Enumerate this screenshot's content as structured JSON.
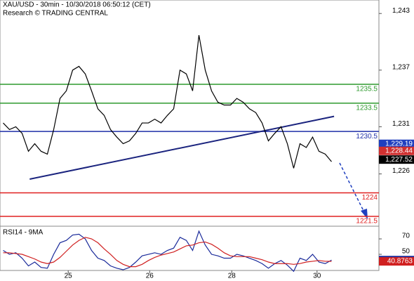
{
  "chart_data": [
    {
      "type": "line",
      "title": "XAU/USD - 30min - 10/30/2018 06:50:12 (CET)",
      "subtitle": "Research © TRADING CENTRAL",
      "x": [
        0,
        1,
        2,
        3,
        4,
        5,
        6,
        7,
        8,
        9,
        10,
        11,
        12,
        13,
        14,
        15,
        16,
        17,
        18,
        19,
        20,
        21,
        22,
        23,
        24,
        25,
        26,
        27,
        28,
        29,
        30,
        31,
        32,
        33,
        34,
        35,
        36,
        37,
        38,
        39,
        40,
        41,
        42,
        43,
        44,
        45,
        46,
        47,
        48,
        49,
        50,
        51,
        52
      ],
      "series": [
        {
          "color": "#000000",
          "values": [
            1231.4,
            1230.7,
            1231.0,
            1230.3,
            1228.4,
            1229.2,
            1228.4,
            1228.1,
            1230.7,
            1234.0,
            1234.8,
            1237.0,
            1237.4,
            1236.6,
            1234.8,
            1232.9,
            1232.2,
            1230.7,
            1229.9,
            1229.2,
            1229.5,
            1230.3,
            1231.4,
            1231.4,
            1231.8,
            1231.4,
            1232.2,
            1232.9,
            1237.0,
            1236.6,
            1234.8,
            1240.7,
            1237.0,
            1234.8,
            1233.6,
            1233.3,
            1233.3,
            1234.0,
            1233.6,
            1232.9,
            1232.5,
            1231.4,
            1229.5,
            1230.3,
            1231.0,
            1229.2,
            1226.6,
            1229.2,
            1228.8,
            1229.9,
            1228.4,
            1228.1,
            1227.3
          ]
        }
      ],
      "xlim": [
        -0.5,
        59.5
      ],
      "ylim": [
        1220.46,
        1244.43
      ],
      "yticks": [
        {
          "value": 1243,
          "label": "1,243"
        },
        {
          "value": 1237,
          "label": "1,237"
        },
        {
          "value": 1231,
          "label": "1,231"
        },
        {
          "value": 1226,
          "label": "1,226"
        }
      ],
      "levels": [
        {
          "value": 1235.5,
          "color": "#2e9a2e"
        },
        {
          "value": 1233.5,
          "color": "#2e9a2e"
        },
        {
          "value": 1230.5,
          "color": "#1f2fa8"
        },
        {
          "value": 1224,
          "color": "#e02020"
        },
        {
          "value": 1221.5,
          "color": "#e02020"
        }
      ],
      "trendline": {
        "x": [
          4.2,
          52.4
        ],
        "values": [
          1225.45,
          1232.1
        ],
        "color": "#1a237e"
      },
      "price_tags": [
        {
          "value": 1229.19,
          "label": "1,229.19",
          "color": "#1f3fbf"
        },
        {
          "value": 1228.44,
          "label": "1,228.44",
          "color": "#d03030"
        },
        {
          "value": 1227.52,
          "label": "1,227.52",
          "color": "#000000"
        }
      ]
    },
    {
      "type": "line",
      "title": "RSI14 - 9MA",
      "x": [
        0,
        1,
        2,
        3,
        4,
        5,
        6,
        7,
        8,
        9,
        10,
        11,
        12,
        13,
        14,
        15,
        16,
        17,
        18,
        19,
        20,
        21,
        22,
        23,
        24,
        25,
        26,
        27,
        28,
        29,
        30,
        31,
        32,
        33,
        34,
        35,
        36,
        37,
        38,
        39,
        40,
        41,
        42,
        43,
        44,
        45,
        46,
        47,
        48,
        49,
        50,
        51,
        52
      ],
      "series": [
        {
          "color": "#1a2a9a",
          "values": [
            55,
            50,
            52,
            45,
            35,
            40,
            33,
            32,
            50,
            65,
            68,
            75,
            76,
            70,
            55,
            45,
            42,
            35,
            32,
            30,
            33,
            40,
            48,
            50,
            52,
            50,
            55,
            58,
            72,
            68,
            55,
            80,
            62,
            50,
            48,
            45,
            45,
            50,
            48,
            45,
            42,
            38,
            32,
            38,
            42,
            36,
            28,
            45,
            42,
            50,
            40,
            38,
            42.5
          ]
        },
        {
          "color": "#d02020",
          "values": [
            52,
            52,
            51,
            50,
            47,
            44,
            40,
            38,
            40,
            46,
            54,
            62,
            68,
            72,
            70,
            65,
            57,
            50,
            42,
            37,
            34,
            34,
            37,
            42,
            46,
            49,
            51,
            53,
            57,
            61,
            62,
            65,
            66,
            63,
            58,
            52,
            48,
            47,
            47,
            47,
            45,
            43,
            40,
            38,
            38,
            38,
            37,
            38,
            40,
            41,
            42,
            41,
            40.9
          ]
        }
      ],
      "xlim": [
        -0.5,
        59.5
      ],
      "ylim": [
        29.1,
        86.4
      ],
      "yticks": [
        70,
        50
      ],
      "xticks": [
        {
          "value": 10.3,
          "label": "25"
        },
        {
          "value": 23.2,
          "label": "26"
        },
        {
          "value": 36.2,
          "label": "28"
        },
        {
          "value": 49.7,
          "label": "30"
        }
      ],
      "price_tags": [
        {
          "value": 42.5334,
          "label": "42.5334",
          "color": "#1a2a9a"
        },
        {
          "value": 40.8763,
          "label": "40.8763",
          "color": "#d02020"
        }
      ]
    }
  ]
}
